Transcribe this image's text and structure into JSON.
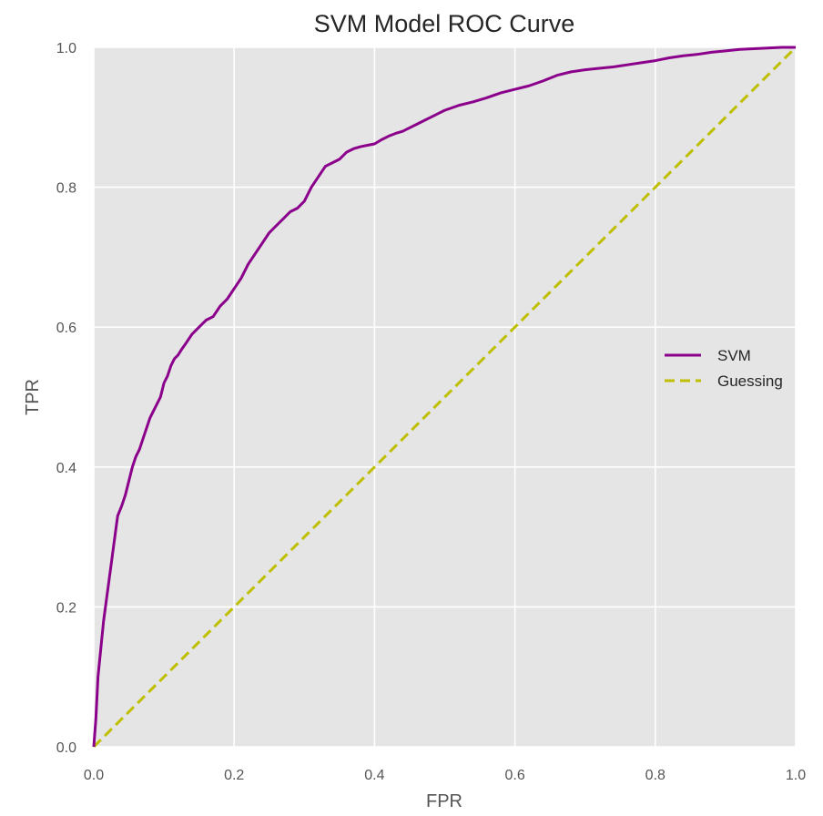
{
  "chart_data": {
    "type": "line",
    "title": "SVM Model ROC Curve",
    "xlabel": "FPR",
    "ylabel": "TPR",
    "xlim": [
      0.0,
      1.0
    ],
    "ylim": [
      0.0,
      1.0
    ],
    "xticks": [
      "0.0",
      "0.2",
      "0.4",
      "0.6",
      "0.8",
      "1.0"
    ],
    "yticks": [
      "0.0",
      "0.2",
      "0.4",
      "0.6",
      "0.8",
      "1.0"
    ],
    "grid": true,
    "legend_position": "center-right",
    "series": [
      {
        "name": "SVM",
        "color": "#8b008b",
        "style": "solid",
        "x": [
          0.0,
          0.003,
          0.006,
          0.01,
          0.014,
          0.018,
          0.022,
          0.026,
          0.03,
          0.034,
          0.04,
          0.045,
          0.05,
          0.055,
          0.06,
          0.065,
          0.07,
          0.075,
          0.08,
          0.085,
          0.09,
          0.095,
          0.1,
          0.105,
          0.11,
          0.115,
          0.12,
          0.125,
          0.13,
          0.14,
          0.15,
          0.16,
          0.17,
          0.18,
          0.19,
          0.2,
          0.21,
          0.22,
          0.23,
          0.24,
          0.25,
          0.26,
          0.27,
          0.28,
          0.29,
          0.3,
          0.31,
          0.32,
          0.33,
          0.34,
          0.35,
          0.36,
          0.37,
          0.38,
          0.39,
          0.4,
          0.41,
          0.42,
          0.43,
          0.44,
          0.45,
          0.46,
          0.47,
          0.48,
          0.49,
          0.5,
          0.52,
          0.54,
          0.56,
          0.58,
          0.6,
          0.62,
          0.64,
          0.66,
          0.68,
          0.7,
          0.72,
          0.74,
          0.76,
          0.78,
          0.8,
          0.82,
          0.84,
          0.86,
          0.88,
          0.9,
          0.92,
          0.94,
          0.96,
          0.98,
          1.0
        ],
        "y": [
          0.0,
          0.04,
          0.1,
          0.14,
          0.18,
          0.21,
          0.24,
          0.27,
          0.3,
          0.33,
          0.345,
          0.36,
          0.38,
          0.4,
          0.415,
          0.425,
          0.44,
          0.455,
          0.47,
          0.48,
          0.49,
          0.5,
          0.52,
          0.53,
          0.545,
          0.555,
          0.56,
          0.568,
          0.575,
          0.59,
          0.6,
          0.61,
          0.615,
          0.63,
          0.64,
          0.655,
          0.67,
          0.69,
          0.705,
          0.72,
          0.735,
          0.745,
          0.755,
          0.765,
          0.77,
          0.78,
          0.8,
          0.815,
          0.83,
          0.835,
          0.84,
          0.85,
          0.855,
          0.858,
          0.86,
          0.862,
          0.868,
          0.873,
          0.877,
          0.88,
          0.885,
          0.89,
          0.895,
          0.9,
          0.905,
          0.91,
          0.917,
          0.922,
          0.928,
          0.935,
          0.94,
          0.945,
          0.952,
          0.96,
          0.965,
          0.968,
          0.97,
          0.972,
          0.975,
          0.978,
          0.981,
          0.985,
          0.988,
          0.99,
          0.993,
          0.995,
          0.997,
          0.998,
          0.999,
          1.0,
          1.0
        ]
      },
      {
        "name": "Guessing",
        "color": "#bfbf00",
        "style": "dashed",
        "x": [
          0.0,
          1.0
        ],
        "y": [
          0.0,
          1.0
        ]
      }
    ]
  }
}
